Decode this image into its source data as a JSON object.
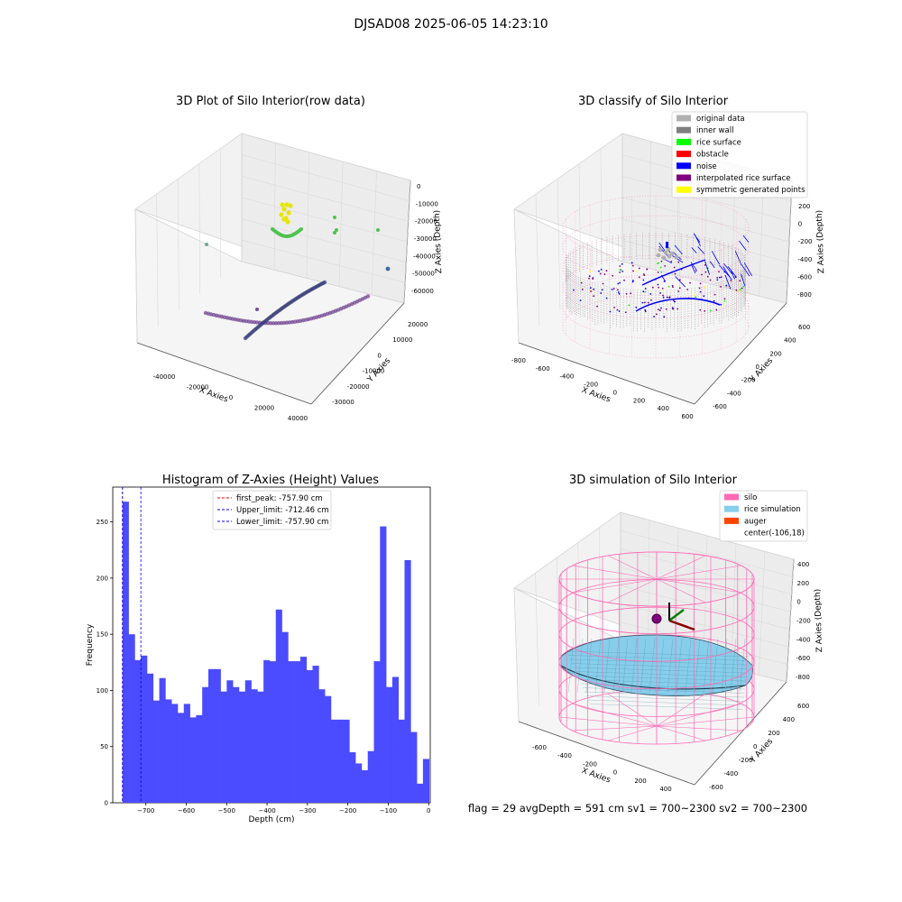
{
  "suptitle": "DJSAD08 2025-06-05 14:23:10",
  "footer": "flag = 29  avgDepth = 591 cm  sv1 = 700~2300  sv2 = 700~2300",
  "colors": {
    "original": "#b0b0b0",
    "inner_wall": "#808080",
    "rice_surface": "#00ff00",
    "obstacle": "#ff0000",
    "noise": "#0000ff",
    "interpolated": "#800080",
    "symmetric": "#ffff00",
    "silo": "#ff69b4",
    "rice_sim": "#87ceeb",
    "auger": "#ff4500",
    "hist_bar": "#4b4bff"
  },
  "chart_data": [
    {
      "type": "scatter",
      "title": "3D Plot of Silo Interior(row data)",
      "xlabel": "X Axies",
      "ylabel": "Y Axies",
      "zlabel": "Z Axies (Depth)",
      "xticks": [
        "-40000",
        "-20000",
        "0",
        "20000",
        "40000"
      ],
      "yticks": [
        "-30000",
        "-20000",
        "-10000",
        "0",
        "10000",
        "20000"
      ],
      "zticks": [
        "0",
        "-10000",
        "-20000",
        "-30000",
        "-40000",
        "-50000",
        "-60000"
      ]
    },
    {
      "type": "scatter",
      "title": "3D classify of Silo Interior",
      "xlabel": "X Axies",
      "ylabel": "Y Axies",
      "zlabel": "Z Axies (Depth)",
      "xticks": [
        "-800",
        "-600",
        "-400",
        "-200",
        "0",
        "200",
        "400",
        "600"
      ],
      "yticks": [
        "-600",
        "-400",
        "-200",
        "0",
        "200",
        "400",
        "600"
      ],
      "zticks": [
        "200",
        "0",
        "-200",
        "-400",
        "-600",
        "-800"
      ],
      "legend_location": "top-right",
      "legend": [
        "original data",
        "inner wall",
        "rice surface",
        "obstacle",
        "noise",
        "interpolated rice surface",
        "symmetric generated points"
      ]
    },
    {
      "type": "bar",
      "title": "Histogram of Z-Axies (Height) Values",
      "xlabel": "Depth (cm)",
      "ylabel": "Frequency",
      "xlim": [
        -782,
        4
      ],
      "ylim": [
        0,
        281
      ],
      "xticks": [
        -700,
        -600,
        -500,
        -400,
        -300,
        -200,
        -100,
        0
      ],
      "yticks": [
        0,
        50,
        100,
        150,
        200,
        250
      ],
      "bin_start": -757.9,
      "bin_width": 15.18,
      "values": [
        268,
        150,
        127,
        131,
        115,
        91,
        111,
        92,
        88,
        80,
        88,
        76,
        78,
        103,
        119,
        119,
        99,
        109,
        103,
        99,
        109,
        101,
        99,
        127,
        126,
        172,
        152,
        126,
        126,
        130,
        118,
        122,
        101,
        95,
        74,
        74,
        74,
        45,
        35,
        29,
        46,
        126,
        246,
        103,
        112,
        74,
        216,
        63,
        17,
        39
      ],
      "vlines": [
        {
          "label": "first_peak: -757.90 cm",
          "x": -757.9,
          "color": "#ff0000"
        },
        {
          "label": "Upper_limit: -712.46 cm",
          "x": -712.46,
          "color": "#0000ff"
        },
        {
          "label": "Lower_limit: -757.90 cm",
          "x": -757.9,
          "color": "#0000ff"
        }
      ],
      "legend_location": "top-center"
    },
    {
      "type": "scatter",
      "title": "3D simulation of Silo Interior",
      "xlabel": "X Axies",
      "ylabel": "Y Axies",
      "zlabel": "Z Axies (Depth)",
      "xticks": [
        "-600",
        "-400",
        "-200",
        "0",
        "200",
        "400"
      ],
      "yticks": [
        "-600",
        "-400",
        "-200",
        "0",
        "200",
        "400",
        "600"
      ],
      "zticks": [
        "400",
        "200",
        "0",
        "-200",
        "-400",
        "-600",
        "-800"
      ],
      "legend_location": "top-right",
      "legend": [
        "silo",
        "rice simulation",
        "auger",
        "center(-106,18)"
      ]
    }
  ]
}
